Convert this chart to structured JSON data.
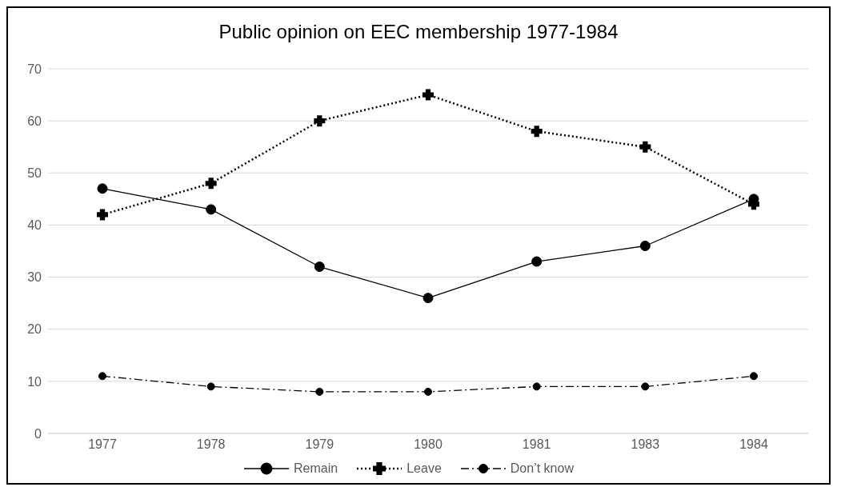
{
  "chart_data": {
    "type": "line",
    "title": "Public opinion on EEC membership 1977-1984",
    "categories": [
      "1977",
      "1978",
      "1979",
      "1980",
      "1981",
      "1983",
      "1984"
    ],
    "series": [
      {
        "name": "Remain",
        "color": "#000000",
        "values": [
          47,
          43,
          32,
          26,
          33,
          36,
          45
        ],
        "marker": "circle",
        "line_style": "solid"
      },
      {
        "name": "Leave",
        "color": "#000000",
        "values": [
          42,
          48,
          60,
          65,
          58,
          55,
          44
        ],
        "marker": "cross",
        "line_style": "dotted"
      },
      {
        "name": "Don’t know",
        "color": "#000000",
        "values": [
          11,
          9,
          8,
          8,
          9,
          9,
          11
        ],
        "marker": "circle",
        "line_style": "dashed"
      }
    ],
    "ylim": [
      0,
      70
    ],
    "yticks": [
      0,
      10,
      20,
      30,
      40,
      50,
      60,
      70
    ],
    "grid": "y",
    "legend": "bottom"
  }
}
